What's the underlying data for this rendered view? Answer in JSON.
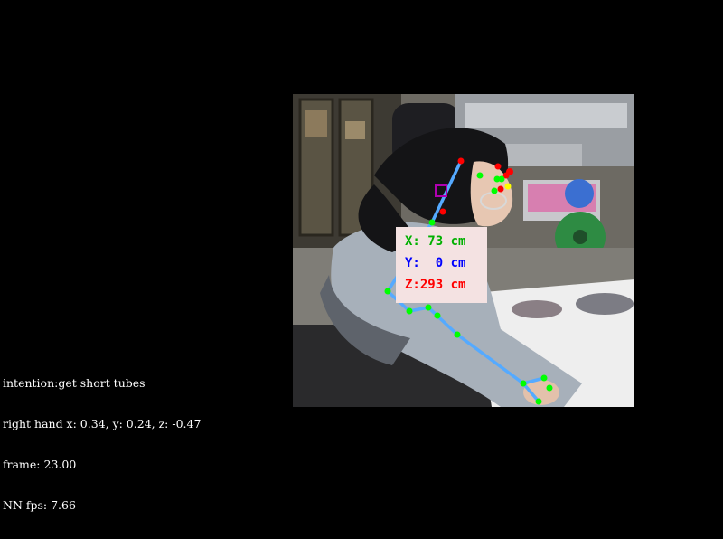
{
  "hud": {
    "intention": "intention:get short tubes",
    "right_hand": "right hand x: 0.34, y: 0.24, z: -0.47",
    "frame": "frame: 23.00",
    "nn_fps": "NN fps: 7.66"
  },
  "coordinates": {
    "x_label": "X: 73 cm",
    "y_label": "Y:  0 cm",
    "z_label": "Z:293 cm",
    "x_color": "#00b000",
    "y_color": "#0000ff",
    "z_color": "#ff0000"
  },
  "colors": {
    "background": "#000000",
    "skeleton_line": "#55aaff",
    "keypoint_green": "#00ff00",
    "keypoint_red": "#ff0000",
    "keypoint_yellow": "#ffff00",
    "roi_box": "#b000b0"
  }
}
